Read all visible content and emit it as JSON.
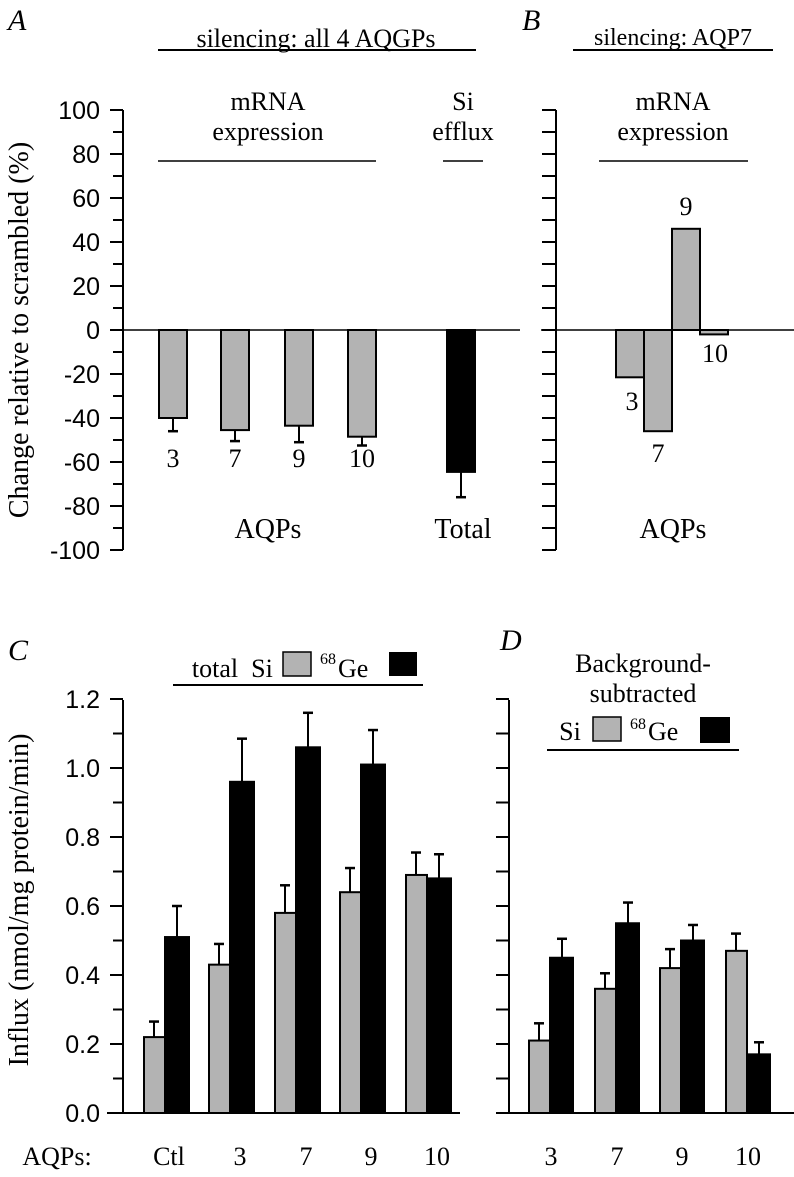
{
  "colors": {
    "gray": "#b3b3b3",
    "black": "#000000"
  },
  "chart_data": [
    {
      "id": "A",
      "type": "bar",
      "panel_label": "A",
      "title": "silencing: all 4 AQGPs",
      "ylabel": "Change relative to scrambled (%)",
      "ylim": [
        -100,
        100
      ],
      "yticks": [
        100,
        80,
        60,
        40,
        20,
        0,
        -20,
        -40,
        -60,
        -80,
        -100
      ],
      "group_labels": [
        {
          "text1": "mRNA",
          "text2": "expression"
        },
        {
          "text1": "Si",
          "text2": "efflux"
        }
      ],
      "xlabels": [
        "AQPs",
        "Total"
      ],
      "categories": [
        "3",
        "7",
        "9",
        "10",
        "Total"
      ],
      "values": [
        -40,
        -45.5,
        -43.5,
        -48.5,
        -64.5
      ],
      "errors": [
        6,
        5,
        7.5,
        4,
        11.5
      ],
      "fills": [
        "gray",
        "gray",
        "gray",
        "gray",
        "black"
      ]
    },
    {
      "id": "B",
      "type": "bar",
      "panel_label": "B",
      "title": "silencing: AQP7",
      "ylim": [
        -100,
        100
      ],
      "group_labels": [
        {
          "text1": "mRNA",
          "text2": "expression"
        }
      ],
      "xlabel": "AQPs",
      "categories": [
        "3",
        "7",
        "9",
        "10"
      ],
      "values": [
        -21.5,
        -46,
        46,
        -2
      ]
    },
    {
      "id": "C",
      "type": "bar",
      "panel_label": "C",
      "title_prefix": "total",
      "legend": [
        {
          "name": "Si",
          "color": "gray"
        },
        {
          "name": "Ge",
          "sup": "68",
          "color": "black"
        }
      ],
      "ylabel": "Influx (nmol/mg protein/min)",
      "ylim": [
        0,
        1.2
      ],
      "yticks": [
        "0.0",
        "0.2",
        "0.4",
        "0.6",
        "0.8",
        "1.0",
        "1.2"
      ],
      "xprefix": "AQPs:",
      "categories": [
        "Ctl",
        "3",
        "7",
        "9",
        "10"
      ],
      "series": [
        {
          "name": "Si",
          "values": [
            0.22,
            0.43,
            0.58,
            0.64,
            0.69
          ],
          "errors": [
            0.045,
            0.06,
            0.08,
            0.07,
            0.065
          ]
        },
        {
          "name": "68Ge",
          "values": [
            0.51,
            0.96,
            1.06,
            1.01,
            0.68
          ],
          "errors": [
            0.09,
            0.125,
            0.1,
            0.1,
            0.07
          ]
        }
      ]
    },
    {
      "id": "D",
      "type": "bar",
      "panel_label": "D",
      "title_line1": "Background-",
      "title_line2": "subtracted",
      "legend": [
        {
          "name": "Si",
          "color": "gray"
        },
        {
          "name": "Ge",
          "sup": "68",
          "color": "black"
        }
      ],
      "ylim": [
        0,
        1.2
      ],
      "categories": [
        "3",
        "7",
        "9",
        "10"
      ],
      "series": [
        {
          "name": "Si",
          "values": [
            0.21,
            0.36,
            0.42,
            0.47
          ],
          "errors": [
            0.05,
            0.045,
            0.055,
            0.05
          ]
        },
        {
          "name": "68Ge",
          "values": [
            0.45,
            0.55,
            0.5,
            0.17
          ],
          "errors": [
            0.055,
            0.06,
            0.045,
            0.035
          ]
        }
      ]
    }
  ]
}
